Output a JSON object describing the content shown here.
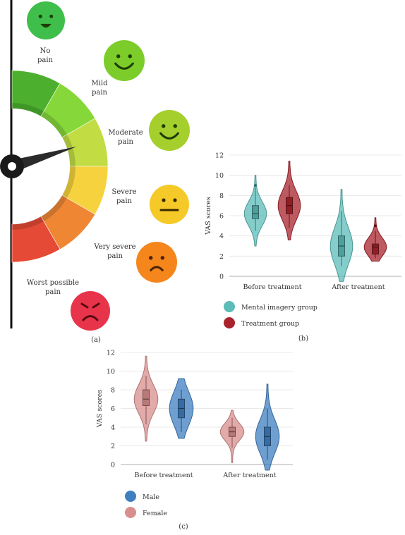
{
  "panel_a": {
    "caption": "(a)",
    "levels": [
      {
        "label_line1": "No",
        "label_line2": "pain",
        "face_color": "#3fbe4c",
        "arc_color": "#4caf2e",
        "mouth": "smile"
      },
      {
        "label_line1": "Mild",
        "label_line2": "pain",
        "face_color": "#7ccc2a",
        "arc_color": "#86d83a",
        "mouth": "smile"
      },
      {
        "label_line1": "Moderate",
        "label_line2": "pain",
        "face_color": "#a5cf2c",
        "arc_color": "#c2dd44",
        "mouth": "smile"
      },
      {
        "label_line1": "Severe",
        "label_line2": "pain",
        "face_color": "#f5c928",
        "arc_color": "#f6d33e",
        "mouth": "flat"
      },
      {
        "label_line1": "Very severe",
        "label_line2": "pain",
        "face_color": "#f4861c",
        "arc_color": "#ef8634",
        "mouth": "frown"
      },
      {
        "label_line1": "Worst possible",
        "label_line2": "pain",
        "face_color": "#e8344a",
        "arc_color": "#e54a36",
        "mouth": "angry"
      }
    ],
    "icons": [
      "smiling-face-icon",
      "smiling-face-icon",
      "smiling-face-icon",
      "neutral-face-icon",
      "frowning-face-icon",
      "angry-face-icon"
    ]
  },
  "chart_data": [
    {
      "type": "violin",
      "caption": "(b)",
      "ylabel": "VAS scores",
      "ylim": [
        0,
        12
      ],
      "yticks": [
        0,
        2,
        4,
        6,
        8,
        10,
        12
      ],
      "categories": [
        "Before treatment",
        "After treatment"
      ],
      "legend_position": "bottom-left",
      "series": [
        {
          "name": "Mental imagery group",
          "color": "#5bbcb8",
          "groups": [
            {
              "min": 3,
              "max": 10,
              "q1": 5.7,
              "median": 6.2,
              "q3": 7,
              "whisker_low": 4.5,
              "whisker_high": 8.8,
              "outliers": [
                9
              ]
            },
            {
              "min": -0.5,
              "max": 8.6,
              "q1": 2,
              "median": 3,
              "q3": 4,
              "whisker_low": 1,
              "whisker_high": 6.5,
              "outliers": []
            }
          ]
        },
        {
          "name": "Treatment group",
          "color": "#a8232c",
          "groups": [
            {
              "min": 3.6,
              "max": 11.4,
              "q1": 6.2,
              "median": 7,
              "q3": 7.8,
              "whisker_low": 4.8,
              "whisker_high": 9,
              "outliers": []
            },
            {
              "min": 1.5,
              "max": 5.8,
              "q1": 2.2,
              "median": 2.9,
              "q3": 3.2,
              "whisker_low": 1.8,
              "whisker_high": 4.5,
              "outliers": [
                5
              ]
            }
          ]
        }
      ]
    },
    {
      "type": "violin",
      "caption": "(c)",
      "ylabel": "VAS scores",
      "ylim": [
        0,
        12
      ],
      "yticks": [
        0,
        2,
        4,
        6,
        8,
        10,
        12
      ],
      "categories": [
        "Before treatment",
        "After treatment"
      ],
      "legend_position": "bottom-left",
      "series": [
        {
          "name": "Female",
          "color": "#d98e8e",
          "groups": [
            {
              "min": 2.5,
              "max": 11.6,
              "q1": 6.3,
              "median": 7,
              "q3": 8,
              "whisker_low": 4.3,
              "whisker_high": 9.5,
              "outliers": []
            },
            {
              "min": 0.2,
              "max": 5.8,
              "q1": 3,
              "median": 3.5,
              "q3": 4,
              "whisker_low": 1.8,
              "whisker_high": 5,
              "outliers": []
            }
          ]
        },
        {
          "name": "Male",
          "color": "#3f7fc0",
          "groups": [
            {
              "min": 2.8,
              "max": 9.2,
              "q1": 5,
              "median": 6,
              "q3": 7,
              "whisker_low": 3.5,
              "whisker_high": 8,
              "outliers": []
            },
            {
              "min": -0.6,
              "max": 8.6,
              "q1": 2,
              "median": 3,
              "q3": 4,
              "whisker_low": 0.5,
              "whisker_high": 6,
              "outliers": []
            }
          ]
        }
      ],
      "legend_order": [
        "Male",
        "Female"
      ]
    }
  ]
}
